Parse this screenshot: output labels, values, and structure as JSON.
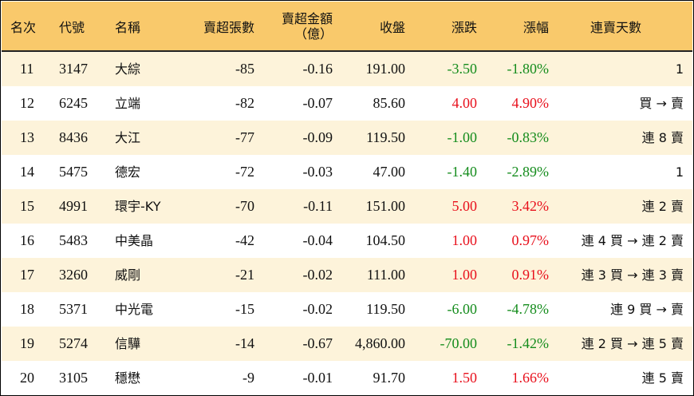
{
  "header": {
    "rank": "名次",
    "code": "代號",
    "name": "名稱",
    "net_sell_lots": "賣超張數",
    "net_sell_amount_line1": "賣超金額",
    "net_sell_amount_line2": "（億）",
    "close": "收盤",
    "change": "漲跌",
    "change_pct": "漲幅",
    "streak": "連賣天數"
  },
  "colors": {
    "header_bg": "#f9c96b",
    "alt_row_bg": "#fdf3da",
    "up": "#e8101c",
    "down": "#148c1c"
  },
  "rows": [
    {
      "rank": "11",
      "code": "3147",
      "name": "大綜",
      "lots": "-85",
      "amount": "-0.16",
      "close": "191.00",
      "change": "-3.50",
      "pct": "-1.80%",
      "dir": "down",
      "streak": "1"
    },
    {
      "rank": "12",
      "code": "6245",
      "name": "立端",
      "lots": "-82",
      "amount": "-0.07",
      "close": "85.60",
      "change": "4.00",
      "pct": "4.90%",
      "dir": "up",
      "streak": "買 → 賣"
    },
    {
      "rank": "13",
      "code": "8436",
      "name": "大江",
      "lots": "-77",
      "amount": "-0.09",
      "close": "119.50",
      "change": "-1.00",
      "pct": "-0.83%",
      "dir": "down",
      "streak": "連 8 賣"
    },
    {
      "rank": "14",
      "code": "5475",
      "name": "德宏",
      "lots": "-72",
      "amount": "-0.03",
      "close": "47.00",
      "change": "-1.40",
      "pct": "-2.89%",
      "dir": "down",
      "streak": "1"
    },
    {
      "rank": "15",
      "code": "4991",
      "name": "環宇-KY",
      "lots": "-70",
      "amount": "-0.11",
      "close": "151.00",
      "change": "5.00",
      "pct": "3.42%",
      "dir": "up",
      "streak": "連 2 賣"
    },
    {
      "rank": "16",
      "code": "5483",
      "name": "中美晶",
      "lots": "-42",
      "amount": "-0.04",
      "close": "104.50",
      "change": "1.00",
      "pct": "0.97%",
      "dir": "up",
      "streak": "連 4 買 → 連 2 賣"
    },
    {
      "rank": "17",
      "code": "3260",
      "name": "威剛",
      "lots": "-21",
      "amount": "-0.02",
      "close": "111.00",
      "change": "1.00",
      "pct": "0.91%",
      "dir": "up",
      "streak": "連 3 買 → 連 3 賣"
    },
    {
      "rank": "18",
      "code": "5371",
      "name": "中光電",
      "lots": "-15",
      "amount": "-0.02",
      "close": "119.50",
      "change": "-6.00",
      "pct": "-4.78%",
      "dir": "down",
      "streak": "連 9 買 → 賣"
    },
    {
      "rank": "19",
      "code": "5274",
      "name": "信驊",
      "lots": "-14",
      "amount": "-0.67",
      "close": "4,860.00",
      "change": "-70.00",
      "pct": "-1.42%",
      "dir": "down",
      "streak": "連 2 買 → 連 5 賣"
    },
    {
      "rank": "20",
      "code": "3105",
      "name": "穩懋",
      "lots": "-9",
      "amount": "-0.01",
      "close": "91.70",
      "change": "1.50",
      "pct": "1.66%",
      "dir": "up",
      "streak": "連 5 賣"
    }
  ]
}
